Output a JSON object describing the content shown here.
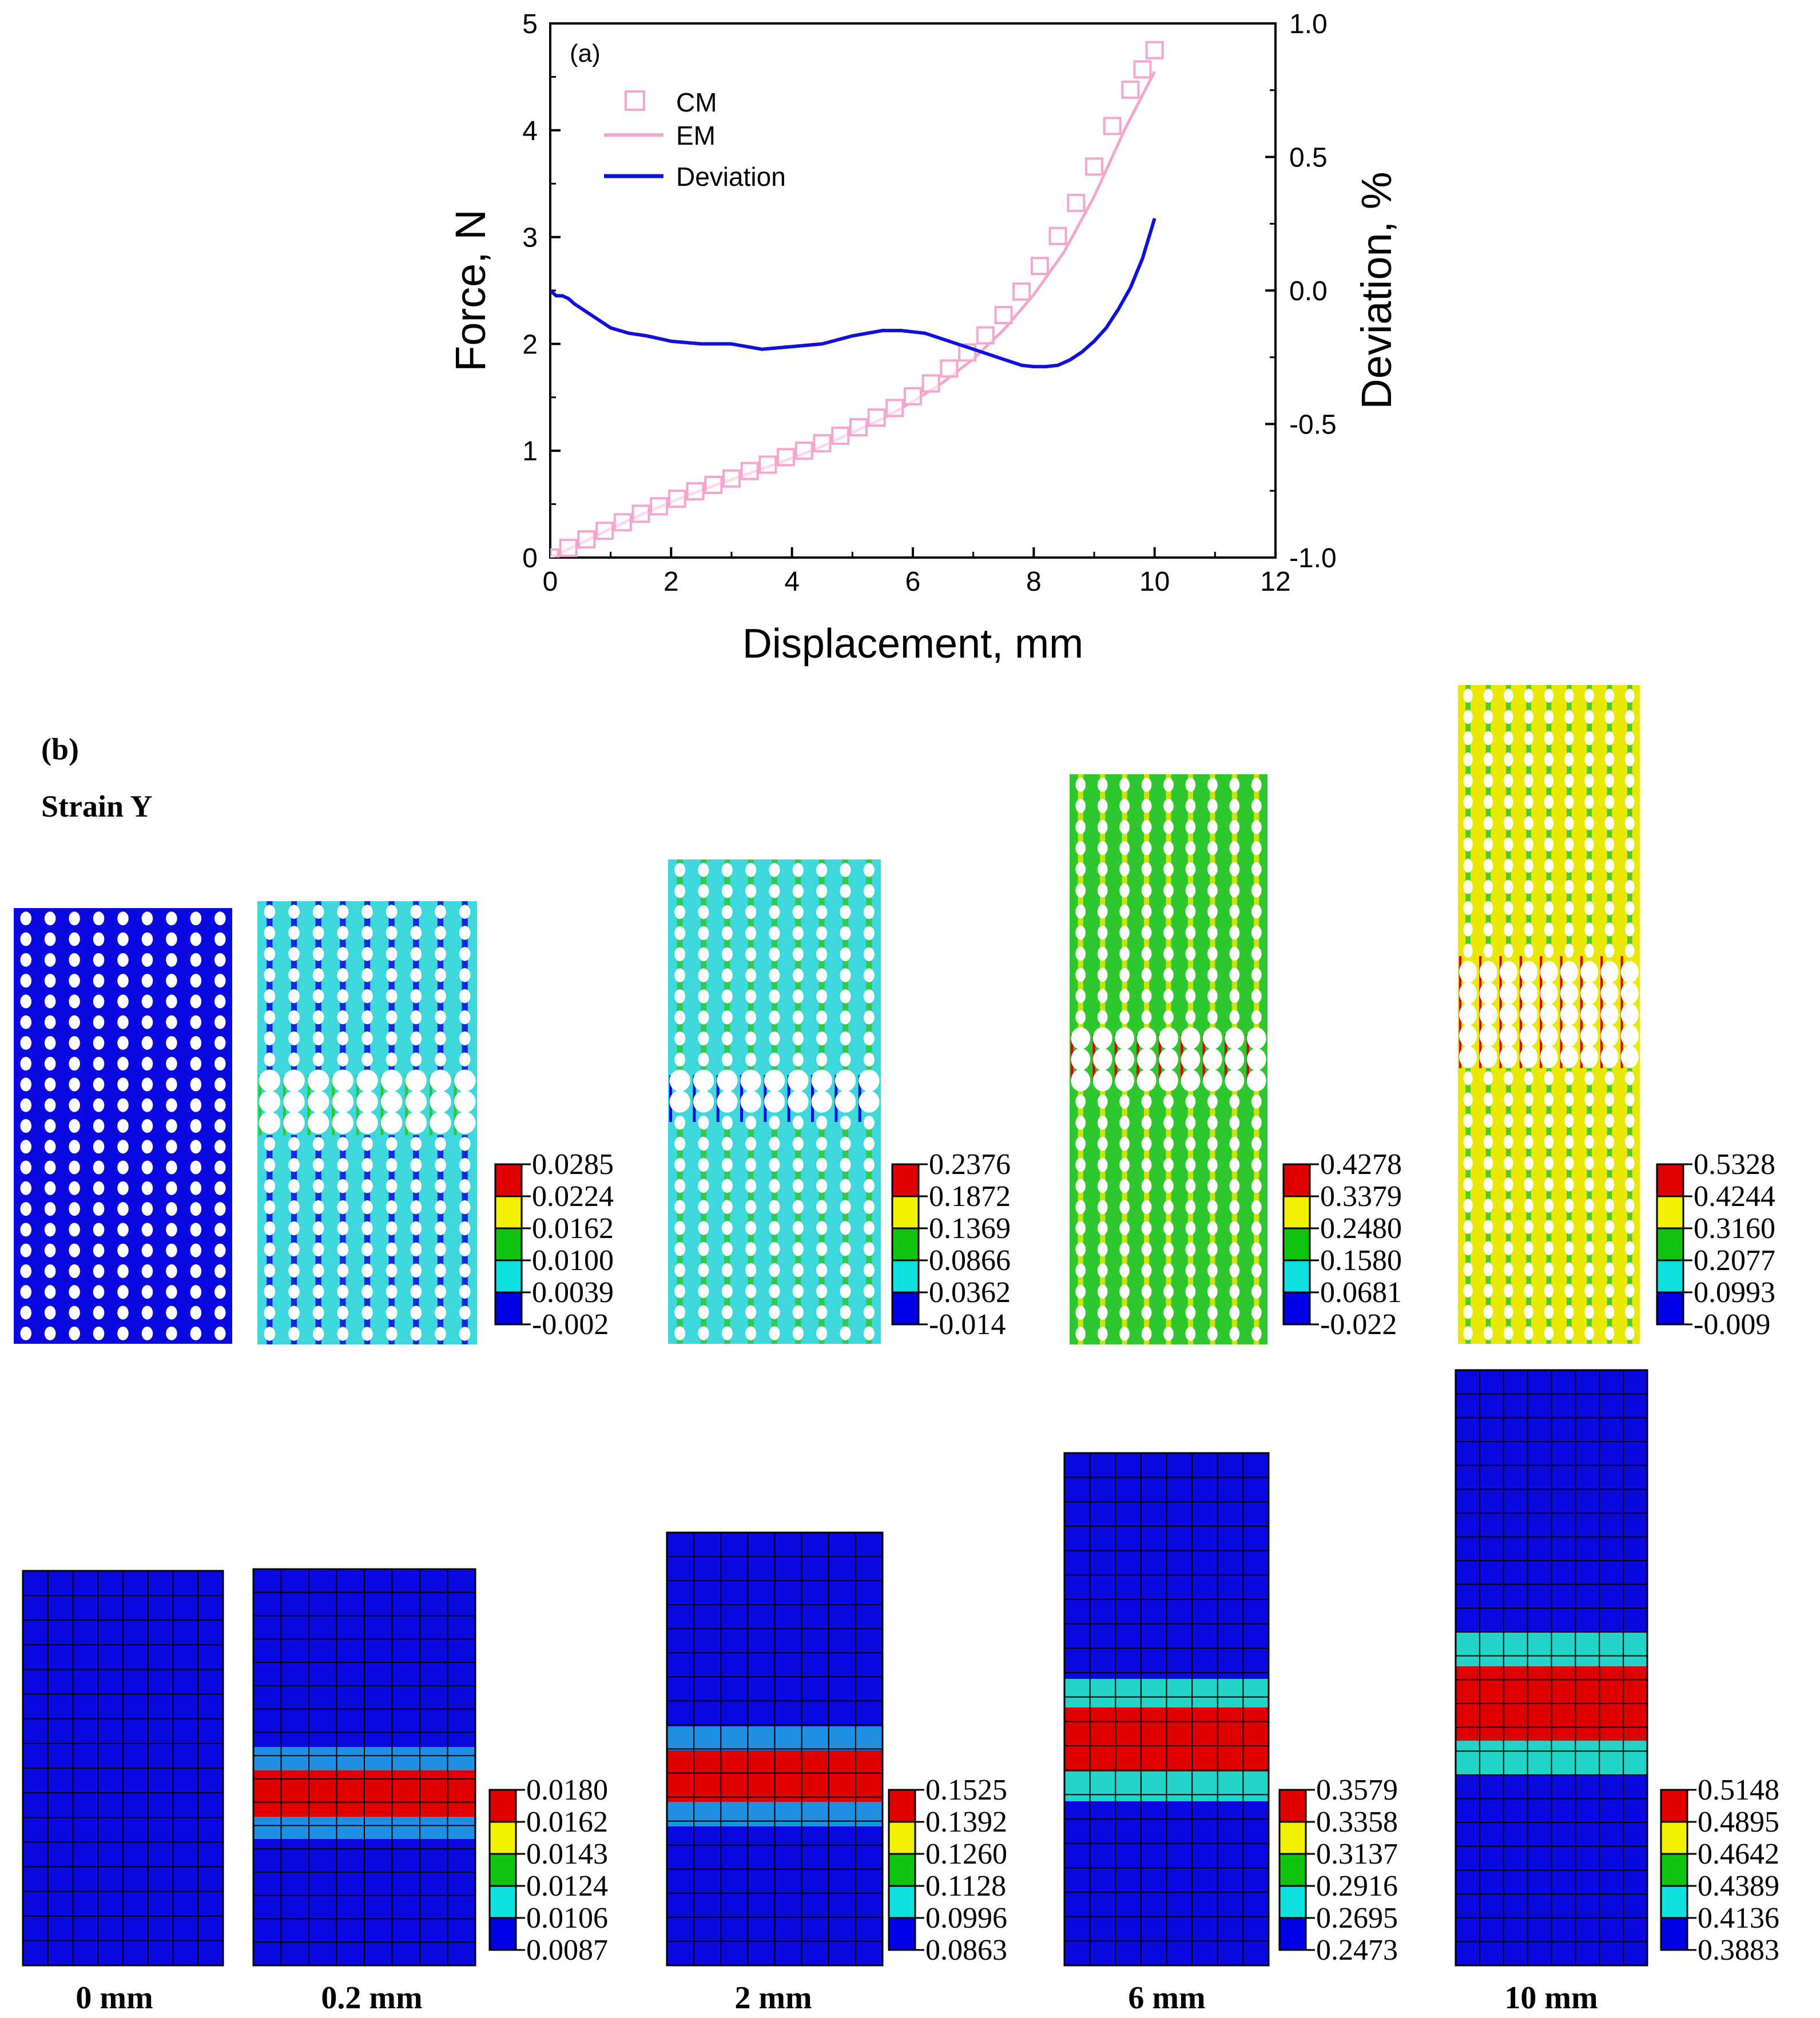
{
  "chart_data": {
    "type": "line",
    "panel_label": "(a)",
    "xlabel": "Displacement, mm",
    "ylabel": "Force, N",
    "y2label": "Deviation, %",
    "xlim": [
      0,
      12
    ],
    "ylim": [
      0,
      5
    ],
    "y2lim": [
      -1.0,
      1.0
    ],
    "x_ticks": [
      "0",
      "2",
      "4",
      "6",
      "8",
      "10",
      "12"
    ],
    "y_ticks": [
      "0",
      "1",
      "2",
      "3",
      "4",
      "5"
    ],
    "y2_ticks": [
      "-1.0",
      "-0.5",
      "0.0",
      "0.5",
      "1.0"
    ],
    "legend": [
      {
        "label": "CM",
        "style": "open-square",
        "color": "#f4a6cc"
      },
      {
        "label": "EM",
        "style": "line",
        "color": "#f4a6cc"
      },
      {
        "label": "Deviation",
        "style": "line",
        "color": "#1010d8"
      }
    ],
    "series": [
      {
        "name": "CM",
        "axis": "left",
        "x": [
          0.0,
          0.3,
          0.6,
          0.9,
          1.2,
          1.5,
          1.8,
          2.1,
          2.4,
          2.7,
          3.0,
          3.3,
          3.6,
          3.9,
          4.2,
          4.5,
          4.8,
          5.1,
          5.4,
          5.7,
          6.0,
          6.3,
          6.6,
          6.9,
          7.2,
          7.5,
          7.8,
          8.1,
          8.4,
          8.7,
          9.0,
          9.3,
          9.6,
          9.8,
          10.0
        ],
        "y": [
          0.0,
          0.09,
          0.17,
          0.25,
          0.33,
          0.41,
          0.48,
          0.55,
          0.62,
          0.68,
          0.74,
          0.81,
          0.87,
          0.94,
          1.0,
          1.07,
          1.14,
          1.22,
          1.31,
          1.4,
          1.51,
          1.63,
          1.77,
          1.92,
          2.08,
          2.27,
          2.49,
          2.73,
          3.01,
          3.32,
          3.66,
          4.04,
          4.38,
          4.57,
          4.75
        ]
      },
      {
        "name": "EM",
        "axis": "left",
        "x": [
          0,
          0.5,
          1,
          1.5,
          2,
          2.5,
          3,
          3.5,
          4,
          4.5,
          5,
          5.5,
          6,
          6.5,
          7,
          7.5,
          8,
          8.5,
          9,
          9.5,
          10
        ],
        "y": [
          0.0,
          0.13,
          0.27,
          0.4,
          0.52,
          0.63,
          0.73,
          0.83,
          0.93,
          1.04,
          1.17,
          1.3,
          1.46,
          1.64,
          1.86,
          2.13,
          2.46,
          2.86,
          3.38,
          4.0,
          4.55
        ]
      },
      {
        "name": "Deviation",
        "axis": "right",
        "x": [
          0.0,
          0.1,
          0.2,
          0.3,
          0.4,
          0.6,
          0.8,
          1.0,
          1.3,
          1.6,
          2.0,
          2.5,
          3.0,
          3.5,
          4.0,
          4.5,
          5.0,
          5.5,
          5.8,
          6.2,
          6.6,
          7.0,
          7.4,
          7.8,
          8.0,
          8.2,
          8.4,
          8.6,
          8.8,
          9.0,
          9.2,
          9.4,
          9.6,
          9.8,
          10.0
        ],
        "y": [
          0.0,
          -0.02,
          -0.02,
          -0.03,
          -0.05,
          -0.08,
          -0.11,
          -0.14,
          -0.16,
          -0.17,
          -0.19,
          -0.2,
          -0.2,
          -0.22,
          -0.21,
          -0.2,
          -0.17,
          -0.15,
          -0.15,
          -0.16,
          -0.19,
          -0.22,
          -0.25,
          -0.28,
          -0.285,
          -0.285,
          -0.28,
          -0.26,
          -0.23,
          -0.19,
          -0.14,
          -0.07,
          0.01,
          0.12,
          0.27
        ]
      }
    ]
  },
  "panel_b": {
    "label": "(b)",
    "title": "Strain Y",
    "columns": [
      {
        "caption": "0 mm",
        "top_legend": null,
        "bottom_legend": null
      },
      {
        "caption": "0.2 mm",
        "top_legend": [
          "0.0285",
          "0.0224",
          "0.0162",
          "0.0100",
          "0.0039",
          "-0.002"
        ],
        "bottom_legend": [
          "0.0180",
          "0.0162",
          "0.0143",
          "0.0124",
          "0.0106",
          "0.0087"
        ]
      },
      {
        "caption": "2 mm",
        "top_legend": [
          "0.2376",
          "0.1872",
          "0.1369",
          "0.0866",
          "0.0362",
          "-0.014"
        ],
        "bottom_legend": [
          "0.1525",
          "0.1392",
          "0.1260",
          "0.1128",
          "0.0996",
          "0.0863"
        ]
      },
      {
        "caption": "6 mm",
        "top_legend": [
          "0.4278",
          "0.3379",
          "0.2480",
          "0.1580",
          "0.0681",
          "-0.022"
        ],
        "bottom_legend": [
          "0.3579",
          "0.3358",
          "0.3137",
          "0.2916",
          "0.2695",
          "0.2473"
        ]
      },
      {
        "caption": "10 mm",
        "top_legend": [
          "0.5328",
          "0.4244",
          "0.3160",
          "0.2077",
          "0.0993",
          "-0.009"
        ],
        "bottom_legend": [
          "0.5148",
          "0.4895",
          "0.4642",
          "0.4389",
          "0.4136",
          "0.3883"
        ]
      }
    ],
    "legend_colors": [
      "#e00000",
      "#f2f200",
      "#11c411",
      "#11e0e0",
      "#0000e6"
    ],
    "colors": {
      "deep_blue": "#0a0ae0",
      "cyan": "#3ed7dc",
      "green": "#2ec82e",
      "yellow": "#e8e800",
      "red": "#e00000",
      "mid_blue": "#1f8fe0",
      "teal": "#22d3c8"
    }
  }
}
